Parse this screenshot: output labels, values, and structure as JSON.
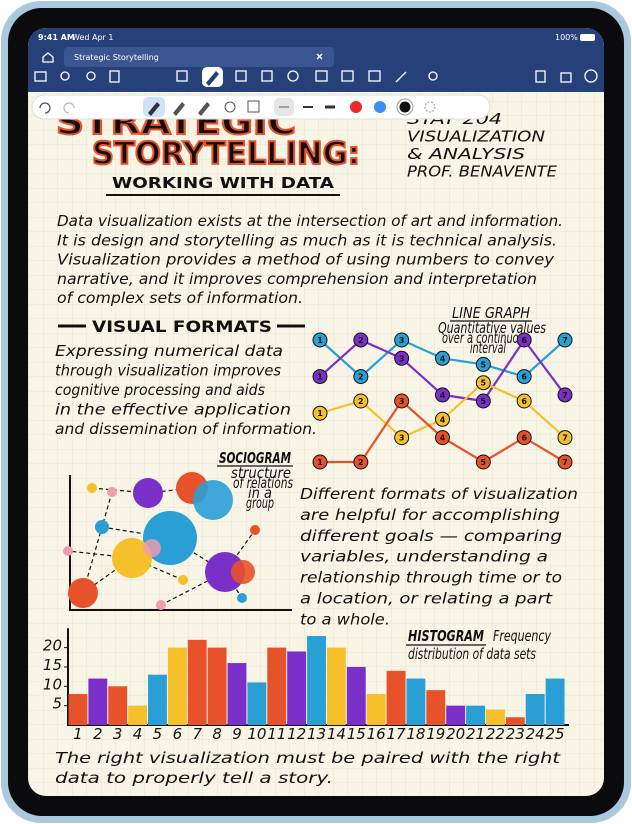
{
  "status_bar": {
    "time": "9:41 AM",
    "date": "Wed Apr 1",
    "battery": "100%"
  },
  "tab": {
    "title": "Strategic Storytelling"
  },
  "notes": {
    "title": [
      "STRATEGIC",
      "STORYTELLING:"
    ],
    "subtitle": "WORKING WITH DATA",
    "course": [
      "STAT 204",
      "VISUALIZATION",
      "& ANALYSIS",
      "PROF. BENAVENTE"
    ],
    "intro": [
      "Data visualization exists at the intersection of art and information.",
      "It is design and storytelling as much as it is technical analysis.",
      "Visualization provides a method of using numbers to convey",
      "narrative, and it improves comprehension and interpretation",
      "of complex sets of information."
    ],
    "section_heading": "VISUAL FORMATS",
    "formats_text": [
      "Expressing numerical data",
      "through visualization improves",
      "cognitive processing and aids",
      "in the effective application",
      "and dissemination of information."
    ],
    "goals_text": [
      "Different formats of visualization",
      "are helpful for accomplishing",
      "different goals — comparing",
      "variables, understanding a",
      "relationship through time or to",
      "a location, or relating a part",
      "to a whole."
    ],
    "closing": [
      "The right visualization must be paired with the right",
      "data to properly tell a story."
    ]
  },
  "sociogram": {
    "title": "SOCIOGRAM",
    "caption": [
      "structure",
      "of relations",
      "in a",
      "group"
    ]
  },
  "line_graph": {
    "type": "line",
    "title": "LINE GRAPH",
    "caption": [
      "Quantitative values",
      "over a continuous",
      "interval"
    ],
    "x": [
      1,
      2,
      3,
      4,
      5,
      6,
      7
    ],
    "ylim": [
      0,
      10
    ],
    "series": [
      {
        "color": "#2a9fd6",
        "values": [
          10,
          7,
          10,
          8.5,
          8,
          7,
          10
        ]
      },
      {
        "color": "#7b2fc9",
        "values": [
          7,
          10,
          8.5,
          5.5,
          5,
          10,
          5.5
        ]
      },
      {
        "color": "#f5c02a",
        "values": [
          4,
          5,
          2,
          3.5,
          6.5,
          5,
          2
        ]
      },
      {
        "color": "#e8522a",
        "values": [
          0,
          0,
          5,
          2,
          0,
          2,
          0
        ]
      }
    ]
  },
  "histogram": {
    "type": "bar",
    "title": "HISTOGRAM",
    "caption": [
      "Frequency",
      "distribution of data sets"
    ],
    "categories": [
      "1",
      "2",
      "3",
      "4",
      "5",
      "6",
      "7",
      "8",
      "9",
      "10",
      "11",
      "12",
      "13",
      "14",
      "15",
      "16",
      "17",
      "18",
      "19",
      "20",
      "21",
      "22",
      "23",
      "24",
      "25"
    ],
    "values": [
      8,
      12,
      10,
      5,
      13,
      20,
      22,
      20,
      16,
      11,
      20,
      19,
      23,
      20,
      15,
      8,
      14,
      12,
      9,
      5,
      5,
      4,
      2,
      8,
      12
    ],
    "colors": [
      "#e8522a",
      "#7b2fc9",
      "#e8522a",
      "#f5c02a",
      "#2a9fd6",
      "#f5c02a",
      "#e8522a",
      "#e8522a",
      "#7b2fc9",
      "#2a9fd6",
      "#e8522a",
      "#7b2fc9",
      "#2a9fd6",
      "#f5c02a",
      "#7b2fc9",
      "#f5c02a",
      "#e8522a",
      "#2a9fd6",
      "#e8522a",
      "#7b2fc9",
      "#2a9fd6",
      "#f5c02a",
      "#e8522a",
      "#2a9fd6",
      "#2a9fd6"
    ],
    "ylim": [
      0,
      25
    ],
    "yticks": [
      5,
      10,
      15,
      20
    ]
  }
}
